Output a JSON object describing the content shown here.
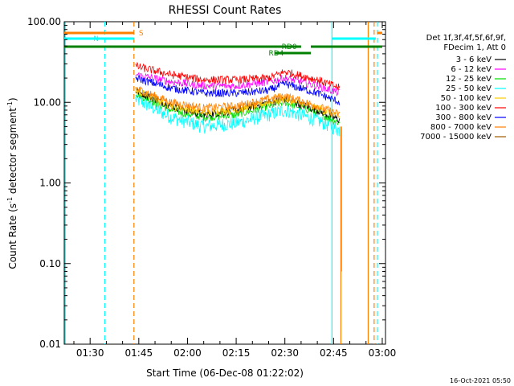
{
  "chart_data": {
    "type": "line",
    "title": "RHESSI Count Rates",
    "xlabel": "Start Time (06-Dec-08 01:22:02)",
    "ylabel_prefix": "Count Rate (s",
    "ylabel_sup": "-1",
    "ylabel_suffix": " detector segment",
    "ylabel_sup2": "-1",
    "ylabel_end": ")",
    "yscale": "log",
    "ylim": [
      0.01,
      100
    ],
    "xlim": [
      "01:22:02",
      "03:01:00"
    ],
    "yticks": [
      {
        "value": 100,
        "label": "100.00"
      },
      {
        "value": 10,
        "label": "10.00"
      },
      {
        "value": 1,
        "label": "1.00"
      },
      {
        "value": 0.1,
        "label": "0.10"
      },
      {
        "value": 0.01,
        "label": "0.01"
      }
    ],
    "xticks": [
      "01:30",
      "01:45",
      "02:00",
      "02:15",
      "02:30",
      "02:45",
      "03:00"
    ],
    "legend_header": [
      "Det 1f,3f,4f,5f,6f,9f,",
      "FDecim 1, Att 0"
    ],
    "series": [
      {
        "name": "3 - 6 keV",
        "color": "#000000",
        "x": [
          "01:44",
          "01:55",
          "02:05",
          "02:15",
          "02:25",
          "02:30",
          "02:40",
          "02:47"
        ],
        "y": [
          14,
          9,
          7,
          8,
          10,
          11,
          8,
          6
        ]
      },
      {
        "name": "6 - 12 keV",
        "color": "#ff00ff",
        "x": [
          "01:44",
          "01:55",
          "02:05",
          "02:15",
          "02:25",
          "02:30",
          "02:40",
          "02:47"
        ],
        "y": [
          22,
          18,
          16,
          16,
          18,
          20,
          16,
          13
        ]
      },
      {
        "name": "12 - 25 keV",
        "color": "#00dd00",
        "x": [
          "01:44",
          "01:55",
          "02:05",
          "02:15",
          "02:25",
          "02:30",
          "02:40",
          "02:47"
        ],
        "y": [
          13,
          8,
          6.5,
          7,
          9,
          10,
          7.5,
          5.5
        ]
      },
      {
        "name": "25 - 50 keV",
        "color": "#00ffff",
        "x": [
          "01:44",
          "01:55",
          "02:05",
          "02:15",
          "02:25",
          "02:30",
          "02:40",
          "02:47"
        ],
        "y": [
          11,
          6.5,
          5,
          5.5,
          7,
          8,
          6,
          4.5
        ]
      },
      {
        "name": "50 - 100 keV",
        "color": "#ffcc00",
        "x": [
          "01:44",
          "01:55",
          "02:05",
          "02:15",
          "02:25",
          "02:30",
          "02:40",
          "02:47"
        ],
        "y": [
          14,
          9,
          7.5,
          8,
          10,
          11,
          8.5,
          6.5
        ]
      },
      {
        "name": "100 - 300 keV",
        "color": "#ff0000",
        "x": [
          "01:44",
          "01:55",
          "02:05",
          "02:15",
          "02:25",
          "02:30",
          "02:40",
          "02:47"
        ],
        "y": [
          28,
          22,
          19,
          19,
          20,
          24,
          19,
          15
        ]
      },
      {
        "name": "300 - 800 keV",
        "color": "#0000ff",
        "x": [
          "01:44",
          "01:55",
          "02:05",
          "02:15",
          "02:25",
          "02:30",
          "02:40",
          "02:47"
        ],
        "y": [
          20,
          15,
          13,
          13,
          14,
          17,
          13,
          10
        ]
      },
      {
        "name": "800 - 7000 keV",
        "color": "#ff8000",
        "x": [
          "01:44",
          "01:55",
          "02:05",
          "02:15",
          "02:25",
          "02:30",
          "02:40",
          "02:47"
        ],
        "y": [
          15,
          10,
          8.5,
          9,
          11,
          12,
          9,
          7
        ]
      },
      {
        "name": "7000 - 15000 keV",
        "color": "#a05a00",
        "x": [],
        "y": []
      }
    ],
    "flags": [
      {
        "label": "S",
        "color": "#ff8000",
        "segments": [
          [
            "01:22:02",
            "01:43:30"
          ],
          [
            "02:58:30",
            "03:00"
          ]
        ]
      },
      {
        "label": "N",
        "color": "#00ffff",
        "segments": [
          [
            "01:22:02",
            "01:43:30"
          ],
          [
            "02:44:30",
            "02:58:00"
          ]
        ]
      },
      {
        "label": "RD4",
        "color": "#008000",
        "segments": [
          [
            "01:22:02",
            "02:35:00"
          ],
          [
            "02:38:00",
            "03:00:00"
          ]
        ]
      },
      {
        "label": "RD0",
        "color": "#008000",
        "segments": [
          [
            "02:27:00",
            "02:38:00"
          ]
        ]
      }
    ],
    "vlines": [
      {
        "x": "01:22:20",
        "color": "#00ffff",
        "style": "solid"
      },
      {
        "x": "01:34:30",
        "color": "#00ffff",
        "style": "dashed"
      },
      {
        "x": "01:43:30",
        "color": "#ff8000",
        "style": "dashed"
      },
      {
        "x": "02:44:30",
        "color": "#00ffff",
        "style": "solid"
      },
      {
        "x": "02:55:40",
        "color": "#ff8000",
        "style": "solid"
      },
      {
        "x": "02:57:30",
        "color": "#ff8000",
        "style": "dashed"
      },
      {
        "x": "02:58:30",
        "color": "#00ffff",
        "style": "dashed"
      }
    ],
    "timestamp": "16-Oct-2021 05:50"
  }
}
